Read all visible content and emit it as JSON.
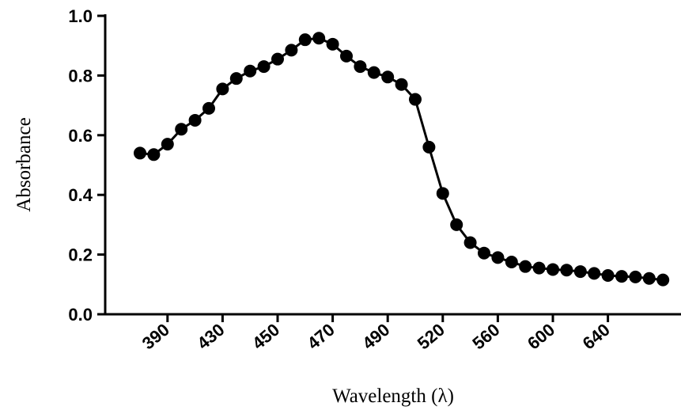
{
  "chart_data": {
    "type": "line",
    "xlabel": "Wavelength (λ)",
    "ylabel": "Absorbance",
    "categories": [
      null,
      null,
      "390",
      null,
      null,
      null,
      "430",
      null,
      null,
      null,
      "450",
      null,
      null,
      null,
      "470",
      null,
      null,
      null,
      "490",
      null,
      null,
      null,
      "520",
      null,
      null,
      null,
      "560",
      null,
      null,
      null,
      "600",
      null,
      null,
      null,
      "640",
      null,
      null,
      null,
      null
    ],
    "series": [
      {
        "name": null,
        "color": "#000000",
        "values": [
          0.54,
          0.535,
          0.57,
          0.62,
          0.65,
          0.69,
          0.755,
          0.79,
          0.815,
          0.83,
          0.855,
          0.885,
          0.92,
          0.925,
          0.905,
          0.865,
          0.83,
          0.81,
          0.795,
          0.77,
          0.72,
          0.56,
          0.405,
          0.3,
          0.24,
          0.205,
          0.19,
          0.175,
          0.16,
          0.155,
          0.15,
          0.148,
          0.143,
          0.137,
          0.13,
          0.127,
          0.125,
          0.12,
          0.115
        ]
      }
    ],
    "ylim": [
      0,
      1
    ],
    "yticks": [
      {
        "value": 0,
        "label": "0.0"
      },
      0.2,
      0.4,
      0.6,
      0.8,
      {
        "value": 1,
        "label": "1.0"
      }
    ]
  }
}
